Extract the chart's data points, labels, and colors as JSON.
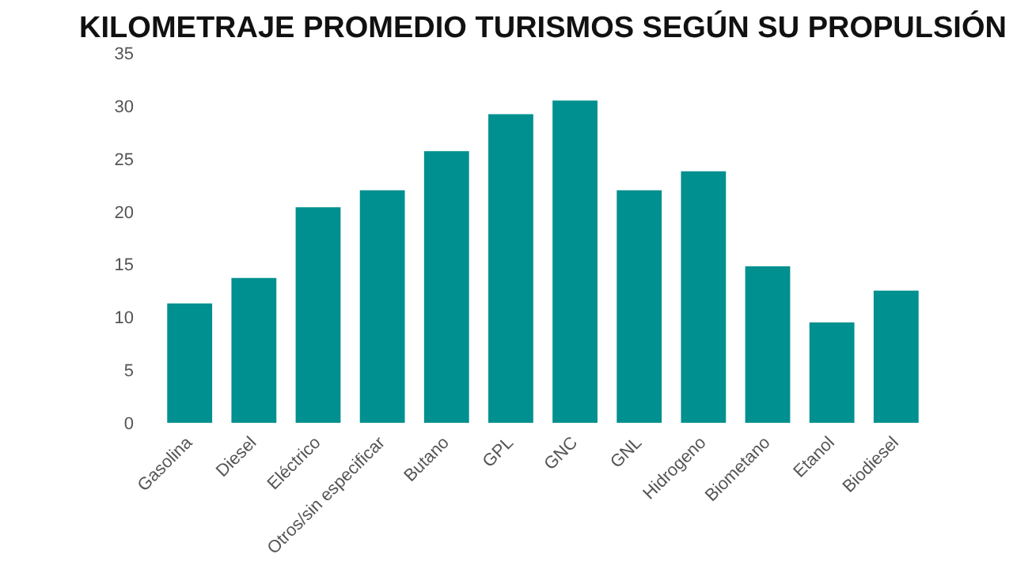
{
  "chart_data": {
    "type": "bar",
    "title": "KILOMETRAJE PROMEDIO TURISMOS SEGÚN SU PROPULSIÓN",
    "categories": [
      "Gasolina",
      "Diesel",
      "Eléctrico",
      "Otros/sin especificar",
      "Butano",
      "GPL",
      "GNC",
      "GNL",
      "Hidrogeno",
      "Biometano",
      "Etanol",
      "Biodiesel"
    ],
    "values": [
      11.3,
      13.7,
      20.4,
      22.0,
      25.7,
      29.2,
      30.5,
      22.0,
      23.8,
      14.8,
      9.5,
      12.5
    ],
    "color": "#00908f",
    "ylim": [
      0,
      35
    ],
    "yticks": [
      0,
      5,
      10,
      15,
      20,
      25,
      30,
      35
    ],
    "grid": false
  }
}
